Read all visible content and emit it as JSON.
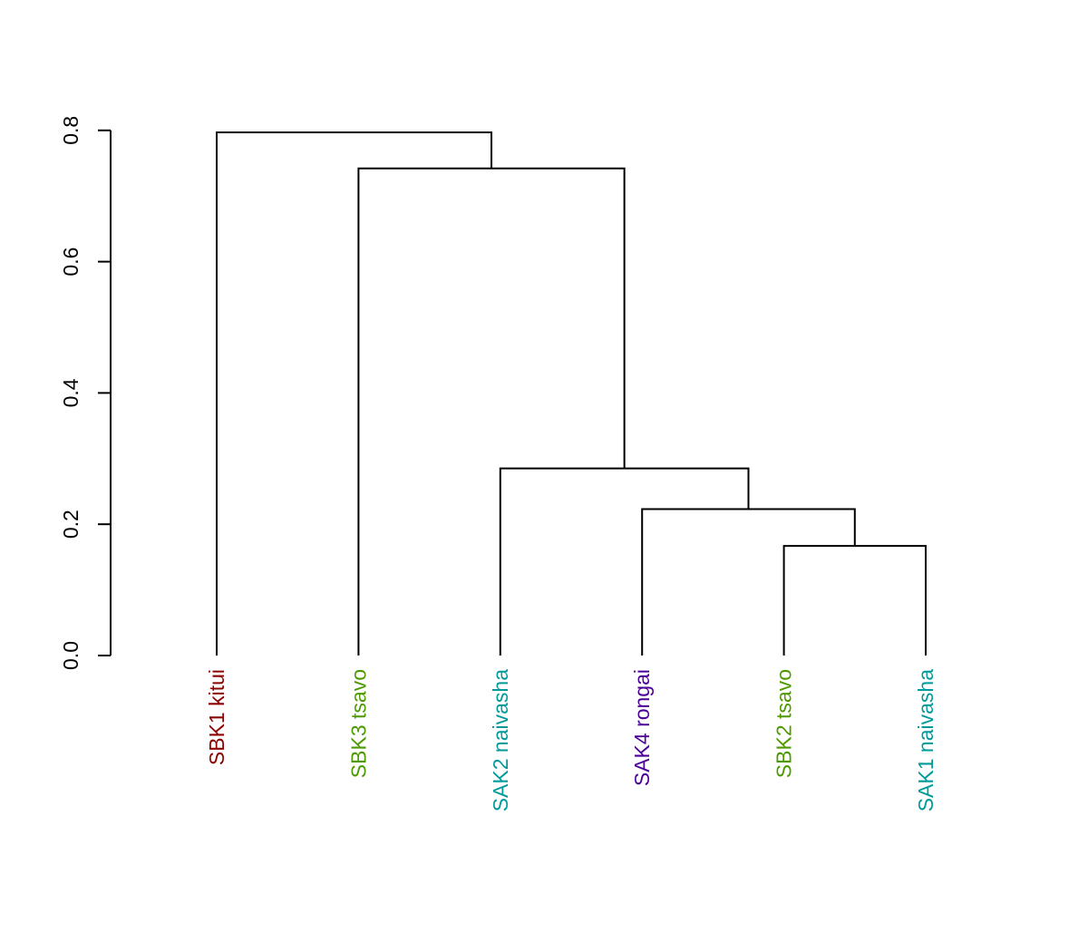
{
  "chart_data": {
    "type": "dendrogram",
    "title": "",
    "xlabel": "",
    "ylabel": "",
    "ylim": [
      0,
      0.8
    ],
    "yticks": [
      "0.0",
      "0.2",
      "0.4",
      "0.6",
      "0.8"
    ],
    "leaves": [
      {
        "label": "SBK1 kitui",
        "color": "#8B0000"
      },
      {
        "label": "SBK3 tsavo",
        "color": "#4C9A00"
      },
      {
        "label": "SAK2 naivasha",
        "color": "#009A9A"
      },
      {
        "label": "SAK4 rongai",
        "color": "#4B0096"
      },
      {
        "label": "SBK2 tsavo",
        "color": "#4C9A00"
      },
      {
        "label": "SAK1 naivasha",
        "color": "#009A9A"
      }
    ],
    "merges": [
      {
        "left": "SBK2 tsavo",
        "right": "SAK1 naivasha",
        "height": 0.167
      },
      {
        "left": "SAK4 rongai",
        "right": "node-1",
        "height": 0.223
      },
      {
        "left": "SAK2 naivasha",
        "right": "node-2",
        "height": 0.285
      },
      {
        "left": "SBK3 tsavo",
        "right": "node-3",
        "height": 0.742
      },
      {
        "left": "SBK1 kitui",
        "right": "node-4",
        "height": 0.797
      }
    ]
  }
}
